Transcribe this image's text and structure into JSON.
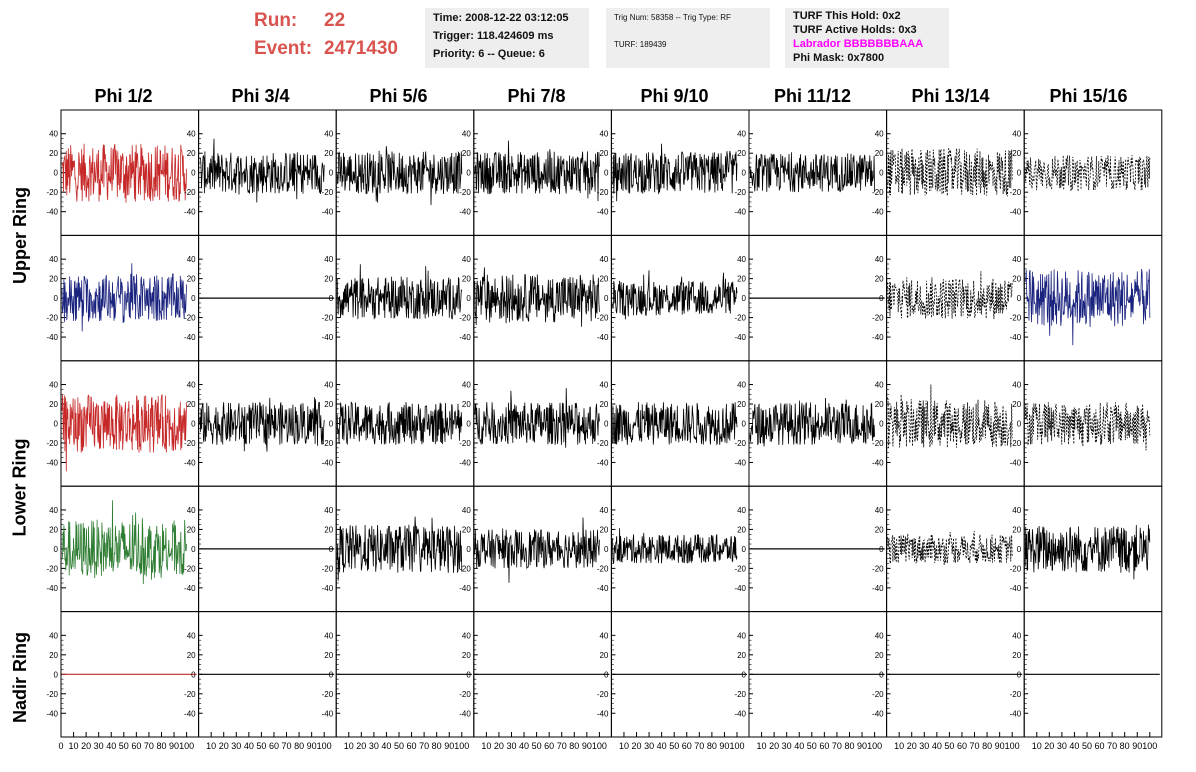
{
  "header": {
    "run_label": "Run:",
    "run_value": "22",
    "event_label": "Event:",
    "event_value": "2471430",
    "box1": [
      "Time: 2008-12-22 03:12:05",
      "Trigger: 118.424609 ms",
      "Priority: 6 -- Queue: 6"
    ],
    "box2": [
      "Trig Num: 58358 -- Trig Type: RF",
      "TURF: 189439"
    ],
    "box3": [
      "TURF This Hold: 0x2",
      "TURF Active Holds: 0x3",
      "Labrador BBBBBBBAAA",
      "Phi Mask: 0x7800"
    ],
    "box3_colors": [
      "#111111",
      "#111111",
      "#ff00ff",
      "#111111"
    ]
  },
  "columns": [
    "Phi 1/2",
    "Phi 3/4",
    "Phi 5/6",
    "Phi 7/8",
    "Phi 9/10",
    "Phi 11/12",
    "Phi 13/14",
    "Phi 15/16"
  ],
  "rows": [
    "Upper Ring",
    "Lower Ring",
    "Nadir Ring"
  ],
  "y_ticks_first_col": [
    "40",
    "20",
    "0",
    "-20",
    "-40"
  ],
  "y_ticks_other_cols": [
    "40",
    "20",
    "0",
    "-20",
    "-40"
  ],
  "x_tick_labels_first": "0 10 20 30 40 50 60 70 80 90 100",
  "x_tick_labels_other": "10 20 30 40 50 60 70 80 90 100",
  "waveforms": [
    [
      "red",
      "black",
      "black",
      "black",
      "black",
      "black",
      "dashed",
      "dashed"
    ],
    [
      "blue",
      "flat",
      "black",
      "black",
      "black",
      "flat",
      "dashed",
      "blue"
    ],
    [
      "red",
      "black",
      "black",
      "black",
      "black",
      "black",
      "dashed",
      "dashed"
    ],
    [
      "green",
      "flat",
      "black",
      "black",
      "black",
      "flat",
      "dashed",
      "black"
    ],
    [
      "flatred",
      "flat",
      "flat",
      "flat",
      "flat",
      "flat",
      "flat",
      "flat"
    ]
  ],
  "amplitudes": [
    [
      30,
      22,
      22,
      22,
      22,
      20,
      25,
      18
    ],
    [
      25,
      0,
      22,
      25,
      18,
      0,
      22,
      30
    ],
    [
      30,
      22,
      22,
      22,
      22,
      22,
      25,
      22
    ],
    [
      30,
      0,
      25,
      20,
      15,
      0,
      15,
      25
    ],
    [
      0,
      0,
      0,
      0,
      0,
      0,
      0,
      0
    ]
  ],
  "colors": {
    "red": "#c62828",
    "blue": "#1a237e",
    "green": "#2e7d32",
    "black": "#000000",
    "accent_run": "#d9534f",
    "magenta": "#ff00ff"
  }
}
